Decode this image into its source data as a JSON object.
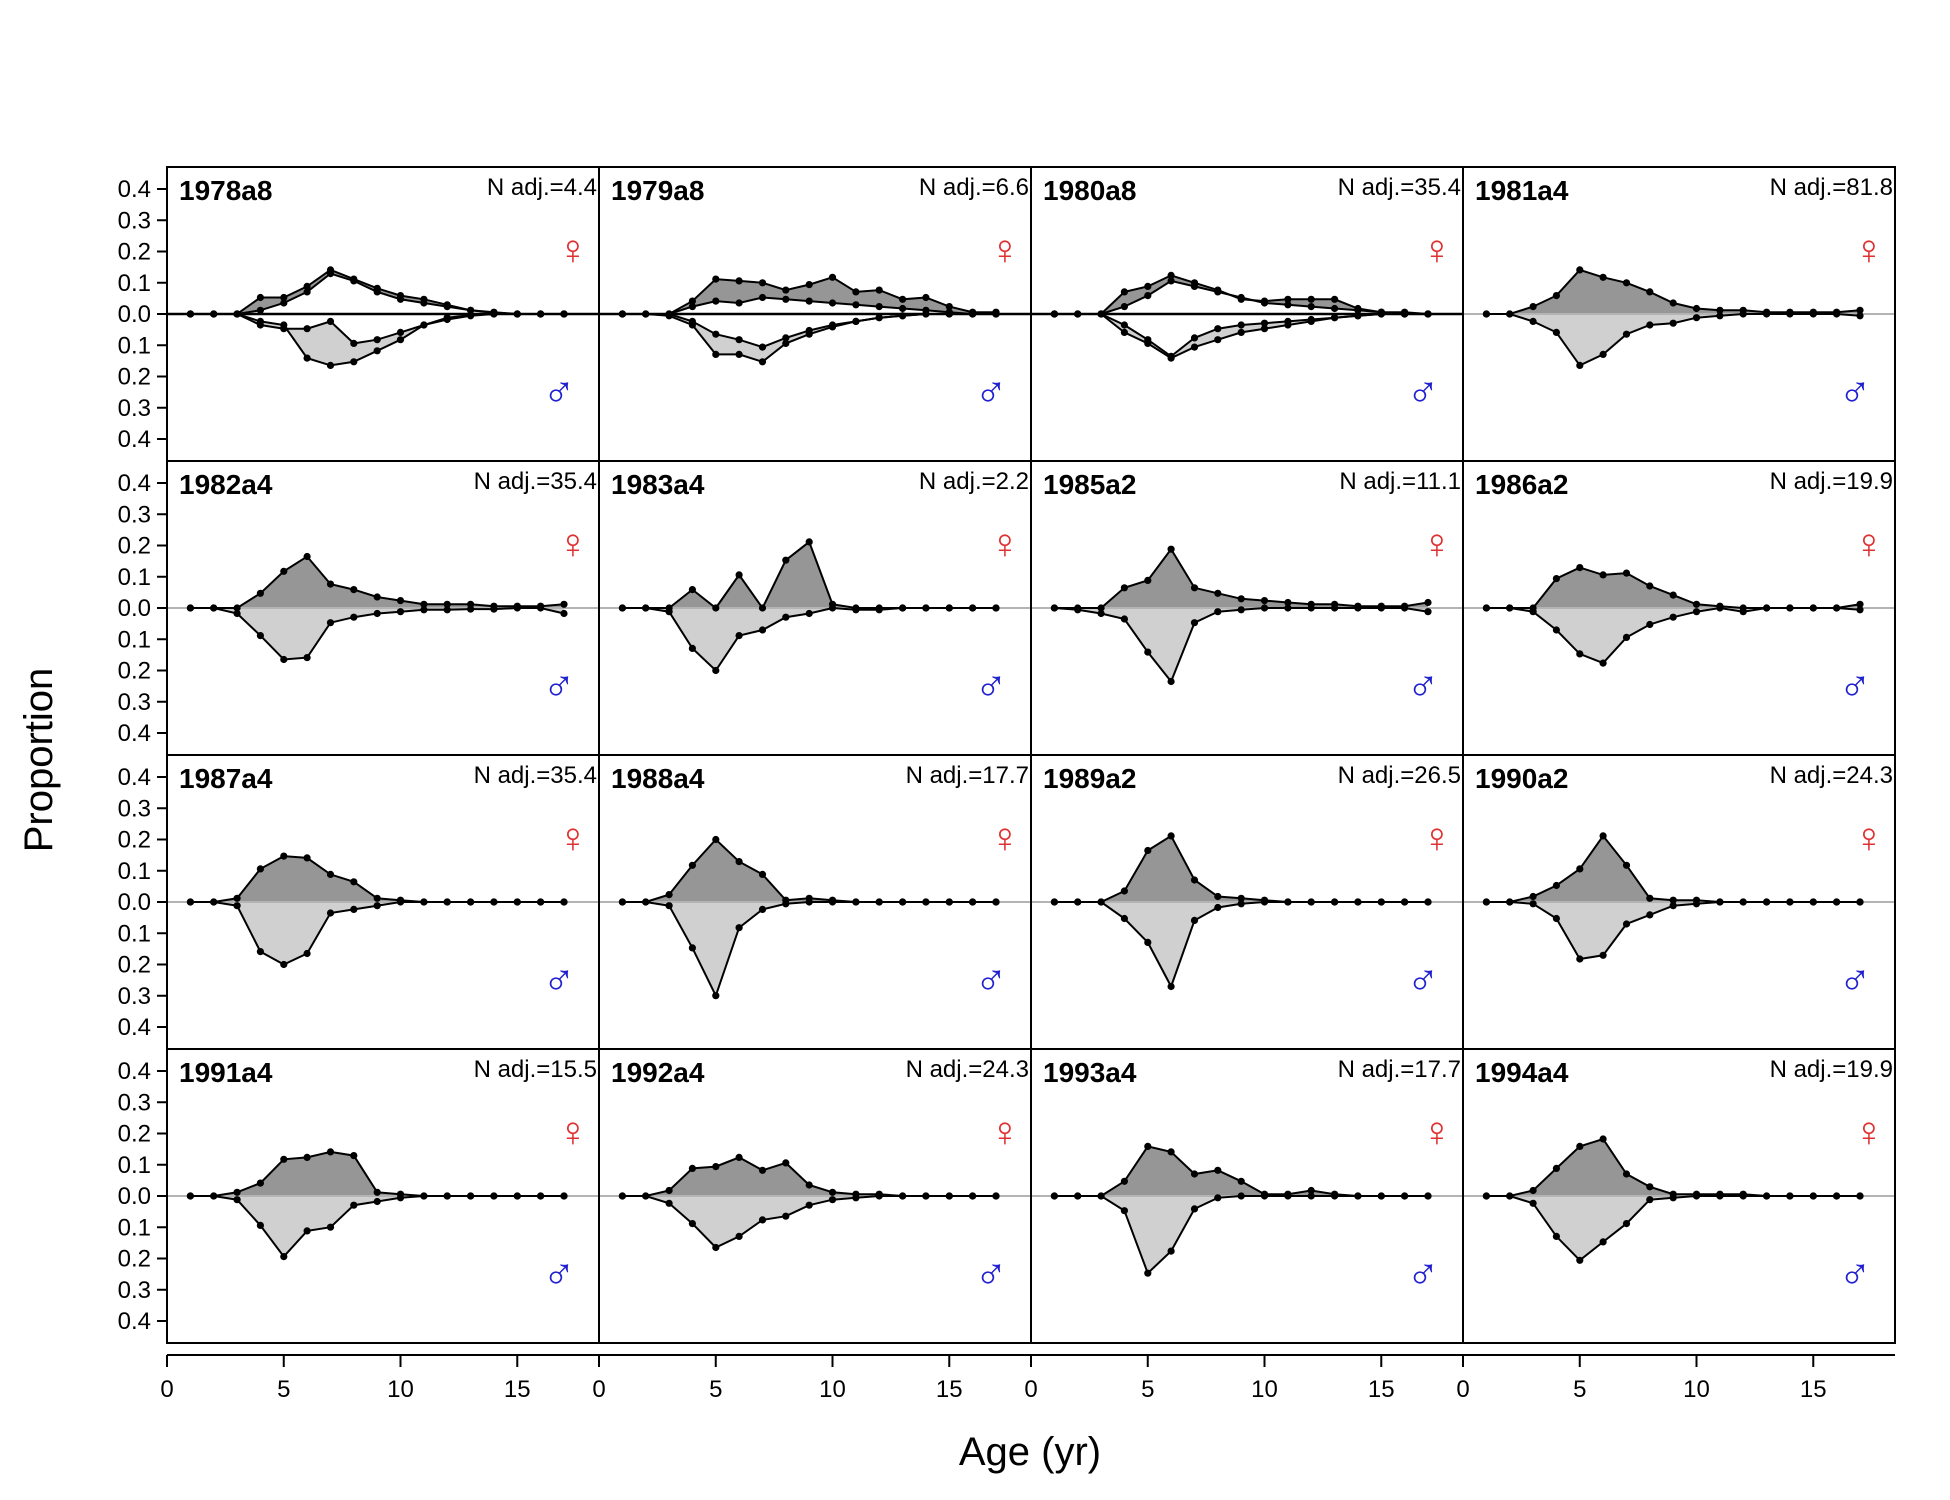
{
  "figure": {
    "ylabel": "Proportion",
    "xlabel": "Age (yr)",
    "female_symbol": "♀",
    "male_symbol": "♂",
    "female_color": "#e03030",
    "male_color": "#2020d0",
    "female_fill": "#969696",
    "male_fill": "#d0d0d0",
    "x_ticks": [
      0,
      5,
      10,
      15
    ],
    "y_ticks": [
      "0.4",
      "0.3",
      "0.2",
      "0.1",
      "0.0",
      "0.1",
      "0.2",
      "0.3",
      "0.4"
    ],
    "n_label_prefix": "N adj.="
  },
  "chart_data": {
    "type": "area",
    "description_of_values": "Mirrored age composition: female proportions plotted above zero, male proportions below zero",
    "xlim": [
      0,
      18.5
    ],
    "ylim": [
      -0.4,
      0.4
    ],
    "ages": [
      1,
      2,
      3,
      4,
      5,
      6,
      7,
      8,
      9,
      10,
      11,
      12,
      13,
      14,
      15,
      16,
      17
    ],
    "panels": [
      {
        "title": "1978a8",
        "n_adj": "4.4",
        "composite": true,
        "female": [
          0,
          0,
          0,
          0.045,
          0.045,
          0.075,
          0.12,
          0.095,
          0.07,
          0.05,
          0.04,
          0.025,
          0.01,
          0.005,
          0,
          0,
          0
        ],
        "female_pred": [
          0,
          0,
          0,
          0.01,
          0.03,
          0.06,
          0.11,
          0.09,
          0.06,
          0.04,
          0.03,
          0.02,
          0.01,
          0.003,
          0,
          0,
          0
        ],
        "male": [
          0,
          0,
          0,
          0.02,
          0.03,
          0.12,
          0.14,
          0.13,
          0.1,
          0.07,
          0.03,
          0.01,
          0.003,
          0,
          0,
          0,
          0
        ],
        "male_pred": [
          0,
          0,
          0,
          0.03,
          0.04,
          0.04,
          0.02,
          0.08,
          0.07,
          0.05,
          0.03,
          0.015,
          0.005,
          0,
          0,
          0,
          0
        ]
      },
      {
        "title": "1982a4",
        "n_adj": "35.4",
        "composite": false,
        "female": [
          0,
          0,
          0,
          0.04,
          0.1,
          0.14,
          0.065,
          0.05,
          0.03,
          0.02,
          0.01,
          0.01,
          0.01,
          0.005,
          0.005,
          0.005,
          0.01
        ],
        "male": [
          0,
          0,
          0.015,
          0.075,
          0.14,
          0.135,
          0.04,
          0.025,
          0.015,
          0.01,
          0.005,
          0.005,
          0.003,
          0.003,
          0,
          0,
          0.015
        ]
      },
      {
        "title": "1987a4",
        "n_adj": "35.4",
        "composite": false,
        "female": [
          0,
          0,
          0.01,
          0.09,
          0.125,
          0.12,
          0.075,
          0.055,
          0.01,
          0.005,
          0,
          0,
          0,
          0,
          0,
          0,
          0
        ],
        "male": [
          0,
          0,
          0.01,
          0.135,
          0.17,
          0.14,
          0.03,
          0.02,
          0.01,
          0,
          0,
          0,
          0,
          0,
          0,
          0,
          0
        ]
      },
      {
        "title": "1991a4",
        "n_adj": "15.5",
        "composite": false,
        "female": [
          0,
          0,
          0.01,
          0.035,
          0.1,
          0.105,
          0.12,
          0.11,
          0.01,
          0.005,
          0,
          0,
          0,
          0,
          0,
          0,
          0
        ],
        "male": [
          0,
          0,
          0.01,
          0.08,
          0.165,
          0.095,
          0.085,
          0.025,
          0.015,
          0.005,
          0,
          0,
          0,
          0,
          0,
          0,
          0
        ]
      },
      {
        "title": "1979a8",
        "n_adj": "6.6",
        "composite": true,
        "female": [
          0,
          0,
          0,
          0.035,
          0.095,
          0.09,
          0.085,
          0.065,
          0.08,
          0.1,
          0.06,
          0.065,
          0.04,
          0.045,
          0.02,
          0.005,
          0.005
        ],
        "female_pred": [
          0,
          0,
          0,
          0.02,
          0.035,
          0.03,
          0.045,
          0.04,
          0.035,
          0.03,
          0.025,
          0.02,
          0.015,
          0.01,
          0.005,
          0,
          0
        ],
        "male": [
          0,
          0,
          0.005,
          0.03,
          0.11,
          0.11,
          0.13,
          0.08,
          0.055,
          0.035,
          0.02,
          0.01,
          0.005,
          0,
          0,
          0,
          0
        ],
        "male_pred": [
          0,
          0,
          0,
          0.02,
          0.055,
          0.07,
          0.09,
          0.065,
          0.045,
          0.03,
          0.02,
          0.01,
          0.005,
          0,
          0,
          0,
          0
        ]
      },
      {
        "title": "1983a4",
        "n_adj": "2.2",
        "composite": false,
        "female": [
          0,
          0,
          0,
          0.05,
          0,
          0.09,
          0,
          0.13,
          0.18,
          0.01,
          0,
          0,
          0,
          0,
          0,
          0,
          0
        ],
        "male": [
          0,
          0,
          0.01,
          0.11,
          0.17,
          0.075,
          0.06,
          0.025,
          0.015,
          0,
          0.005,
          0.005,
          0,
          0,
          0,
          0,
          0
        ]
      },
      {
        "title": "1988a4",
        "n_adj": "17.7",
        "composite": false,
        "female": [
          0,
          0,
          0.02,
          0.1,
          0.17,
          0.11,
          0.075,
          0.005,
          0.01,
          0.005,
          0,
          0,
          0,
          0,
          0,
          0,
          0
        ],
        "male": [
          0,
          0,
          0.01,
          0.125,
          0.255,
          0.07,
          0.02,
          0.005,
          0,
          0,
          0,
          0,
          0,
          0,
          0,
          0,
          0
        ]
      },
      {
        "title": "1992a4",
        "n_adj": "24.3",
        "composite": false,
        "female": [
          0,
          0,
          0.015,
          0.075,
          0.08,
          0.105,
          0.07,
          0.09,
          0.03,
          0.01,
          0.005,
          0.005,
          0,
          0,
          0,
          0,
          0
        ],
        "male": [
          0,
          0,
          0.02,
          0.075,
          0.14,
          0.11,
          0.065,
          0.055,
          0.025,
          0.01,
          0.005,
          0,
          0,
          0,
          0,
          0,
          0
        ]
      },
      {
        "title": "1980a8",
        "n_adj": "35.4",
        "composite": true,
        "female": [
          0,
          0,
          0,
          0.06,
          0.075,
          0.105,
          0.085,
          0.065,
          0.04,
          0.035,
          0.04,
          0.04,
          0.04,
          0.015,
          0.005,
          0.005,
          0
        ],
        "female_pred": [
          0,
          0,
          0,
          0.02,
          0.05,
          0.09,
          0.075,
          0.06,
          0.045,
          0.03,
          0.025,
          0.02,
          0.015,
          0.01,
          0.005,
          0,
          0
        ],
        "male": [
          0,
          0,
          0,
          0.05,
          0.08,
          0.12,
          0.09,
          0.07,
          0.05,
          0.04,
          0.03,
          0.02,
          0.01,
          0.005,
          0,
          0,
          0
        ],
        "male_pred": [
          0,
          0,
          0,
          0.03,
          0.07,
          0.115,
          0.065,
          0.04,
          0.03,
          0.025,
          0.02,
          0.015,
          0.01,
          0.005,
          0,
          0,
          0
        ]
      },
      {
        "title": "1985a2",
        "n_adj": "11.1",
        "composite": false,
        "female": [
          0,
          0,
          0,
          0.055,
          0.075,
          0.16,
          0.055,
          0.04,
          0.025,
          0.02,
          0.015,
          0.01,
          0.01,
          0.005,
          0.005,
          0.005,
          0.015
        ],
        "male": [
          0,
          0.005,
          0.015,
          0.03,
          0.12,
          0.2,
          0.04,
          0.01,
          0.005,
          0,
          0,
          0,
          0,
          0,
          0,
          0,
          0.01
        ]
      },
      {
        "title": "1989a2",
        "n_adj": "26.5",
        "composite": false,
        "female": [
          0,
          0,
          0,
          0.03,
          0.14,
          0.18,
          0.06,
          0.015,
          0.01,
          0.005,
          0,
          0,
          0,
          0,
          0,
          0,
          0
        ],
        "male": [
          0,
          0,
          0,
          0.045,
          0.11,
          0.23,
          0.05,
          0.015,
          0.005,
          0,
          0,
          0,
          0,
          0,
          0,
          0,
          0
        ]
      },
      {
        "title": "1993a4",
        "n_adj": "17.7",
        "composite": false,
        "female": [
          0,
          0,
          0,
          0.04,
          0.135,
          0.12,
          0.06,
          0.07,
          0.04,
          0.005,
          0.005,
          0.015,
          0.005,
          0,
          0,
          0,
          0
        ],
        "male": [
          0,
          0,
          0,
          0.04,
          0.21,
          0.15,
          0.035,
          0.005,
          0,
          0,
          0,
          0,
          0,
          0,
          0,
          0,
          0
        ]
      },
      {
        "title": "1981a4",
        "n_adj": "81.8",
        "composite": false,
        "female": [
          0,
          0,
          0.02,
          0.05,
          0.12,
          0.1,
          0.085,
          0.06,
          0.03,
          0.015,
          0.01,
          0.01,
          0.005,
          0.005,
          0.005,
          0.005,
          0.01
        ],
        "male": [
          0,
          0,
          0.02,
          0.05,
          0.14,
          0.11,
          0.055,
          0.03,
          0.025,
          0.01,
          0.005,
          0,
          0,
          0,
          0,
          0,
          0.005
        ]
      },
      {
        "title": "1986a2",
        "n_adj": "19.9",
        "composite": false,
        "female": [
          0,
          0,
          0,
          0.08,
          0.11,
          0.09,
          0.095,
          0.06,
          0.035,
          0.01,
          0.005,
          0,
          0,
          0,
          0,
          0,
          0.01
        ],
        "male": [
          0,
          0,
          0.01,
          0.06,
          0.125,
          0.15,
          0.08,
          0.045,
          0.025,
          0.01,
          0,
          0.01,
          0,
          0,
          0,
          0,
          0.005
        ]
      },
      {
        "title": "1990a2",
        "n_adj": "24.3",
        "composite": false,
        "female": [
          0,
          0,
          0.015,
          0.045,
          0.09,
          0.18,
          0.1,
          0.01,
          0.005,
          0.005,
          0,
          0,
          0,
          0,
          0,
          0,
          0
        ],
        "male": [
          0,
          0,
          0.005,
          0.045,
          0.155,
          0.145,
          0.06,
          0.035,
          0.01,
          0.005,
          0,
          0,
          0,
          0,
          0,
          0,
          0
        ]
      },
      {
        "title": "1994a4",
        "n_adj": "19.9",
        "composite": false,
        "female": [
          0,
          0,
          0.015,
          0.075,
          0.135,
          0.155,
          0.06,
          0.025,
          0.005,
          0.005,
          0.005,
          0.005,
          0,
          0,
          0,
          0,
          0
        ],
        "male": [
          0,
          0,
          0.02,
          0.11,
          0.175,
          0.125,
          0.075,
          0.01,
          0.005,
          0,
          0,
          0,
          0,
          0,
          0,
          0,
          0
        ]
      }
    ]
  }
}
